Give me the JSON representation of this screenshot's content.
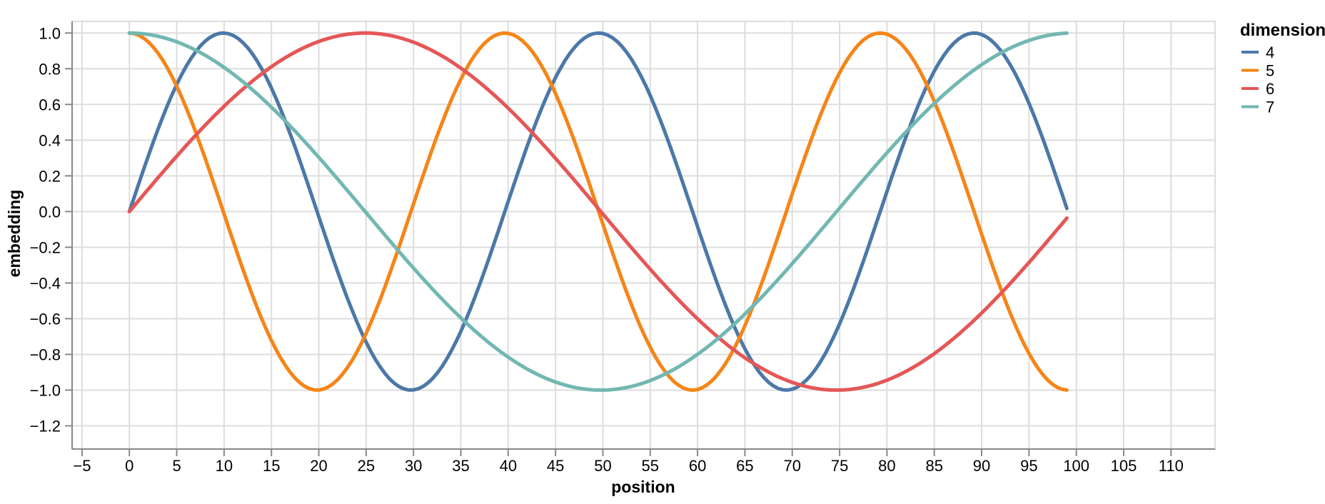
{
  "chart_data": {
    "type": "line",
    "title": "",
    "xlabel": "position",
    "ylabel": "embedding",
    "x_domain": [
      -6.05,
      114.65
    ],
    "y_domain": [
      -1.33,
      1.065
    ],
    "x_data_range": [
      0,
      99
    ],
    "grid": true,
    "x_ticks": [
      -5,
      0,
      5,
      10,
      15,
      20,
      25,
      30,
      35,
      40,
      45,
      50,
      55,
      60,
      65,
      70,
      75,
      80,
      85,
      90,
      95,
      100,
      105,
      110
    ],
    "x_tick_labels": [
      "−5",
      "0",
      "5",
      "10",
      "15",
      "20",
      "25",
      "30",
      "35",
      "40",
      "45",
      "50",
      "55",
      "60",
      "65",
      "70",
      "75",
      "80",
      "85",
      "90",
      "95",
      "100",
      "105",
      "110"
    ],
    "y_ticks": [
      -1.2,
      -1.0,
      -0.8,
      -0.6,
      -0.4,
      -0.2,
      0.0,
      0.2,
      0.4,
      0.6,
      0.8,
      1.0
    ],
    "y_tick_labels": [
      "−1.2",
      "−1.0",
      "−0.8",
      "−0.6",
      "−0.4",
      "−0.2",
      "0.0",
      "0.2",
      "0.4",
      "0.6",
      "0.8",
      "1.0"
    ],
    "legend": {
      "title": "dimension",
      "position": "right"
    },
    "style": {
      "grid_color": "#dddddd",
      "axis_color": "#888888",
      "label_color": "#000000",
      "background": "#ffffff",
      "line_width": 5
    },
    "sample_x": [
      0,
      5,
      10,
      15,
      20,
      25,
      30,
      35,
      40,
      45,
      50,
      55,
      60,
      65,
      70,
      75,
      80,
      85,
      90,
      95,
      99
    ],
    "series": [
      {
        "name": "4",
        "color": "#4c78a8",
        "fn": "sin",
        "omega": 0.1584893,
        "formula": "sin(pos / 10000^(4/20))",
        "sample_y": [
          0.0,
          0.712,
          1.0,
          0.692,
          -0.028,
          -0.731,
          -0.999,
          -0.671,
          0.056,
          0.75,
          0.998,
          0.65,
          -0.085,
          -0.769,
          -0.995,
          -0.628,
          0.113,
          0.787,
          0.992,
          0.606,
          0.018
        ]
      },
      {
        "name": "5",
        "color": "#f58518",
        "fn": "cos",
        "omega": 0.1584893,
        "formula": "cos(pos / 10000^(4/20))",
        "sample_y": [
          1.0,
          0.702,
          -0.014,
          -0.722,
          -1.0,
          -0.682,
          0.042,
          0.741,
          0.998,
          0.661,
          -0.071,
          -0.76,
          -0.996,
          -0.639,
          0.099,
          0.778,
          0.994,
          0.617,
          -0.127,
          -0.795,
          -1.0
        ]
      },
      {
        "name": "6",
        "color": "#e45756",
        "fn": "sin",
        "omega": 0.0630957,
        "formula": "sin(pos / 10000^(6/20))",
        "sample_y": [
          0.0,
          0.31,
          0.59,
          0.812,
          0.953,
          1.0,
          0.948,
          0.803,
          0.579,
          0.297,
          -0.013,
          -0.323,
          -0.601,
          -0.819,
          -0.957,
          -1.0,
          -0.945,
          -0.796,
          -0.569,
          -0.285,
          -0.037
        ]
      },
      {
        "name": "7",
        "color": "#72b7b2",
        "fn": "cos",
        "omega": 0.0630957,
        "formula": "cos(pos / 10000^(6/20))",
        "sample_y": [
          1.0,
          0.951,
          0.808,
          0.584,
          0.304,
          -0.007,
          -0.318,
          -0.596,
          -0.815,
          -0.955,
          -1.0,
          -0.947,
          -0.799,
          -0.574,
          -0.292,
          0.017,
          0.328,
          0.606,
          0.823,
          0.959,
          0.999
        ]
      }
    ]
  }
}
